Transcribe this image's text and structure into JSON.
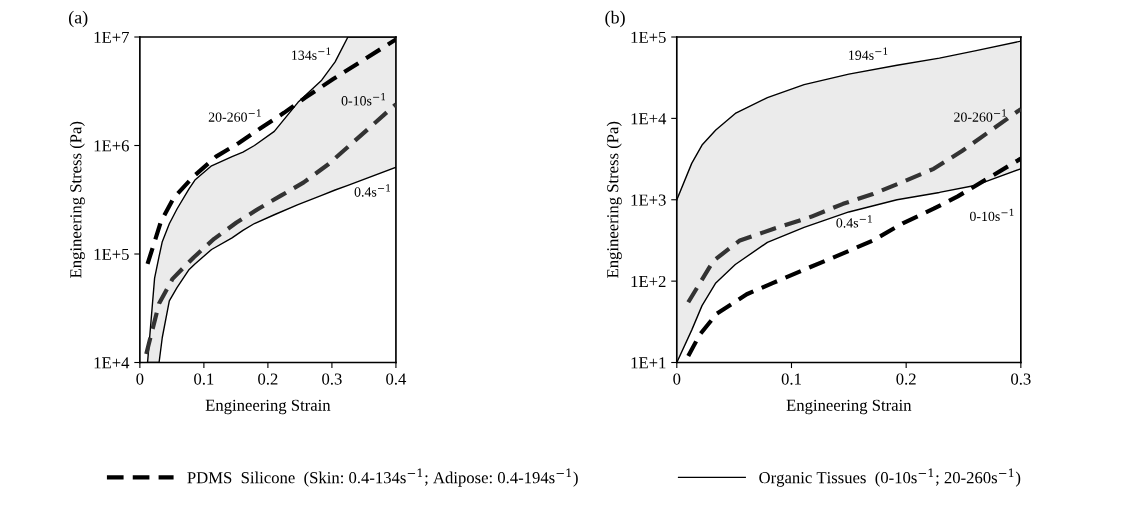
{
  "chart_data": [
    {
      "type": "line",
      "xlabel": "Engineering Strain",
      "ylabel": "Engineering Stress (Pa)",
      "log": "y",
      "grid": false,
      "legend": "bottom",
      "marker": "none",
      "xlim": [
        0,
        0.4
      ],
      "xticks": [
        0,
        0.1,
        0.2,
        0.3,
        0.4
      ],
      "ylim": [
        10000,
        10000000
      ],
      "yticks": [
        {
          "value": 10000,
          "label": "1E+4"
        },
        {
          "value": 100000,
          "label": "1E+5"
        },
        {
          "value": 1000000,
          "label": "1E+6"
        },
        {
          "value": 10000000,
          "label": "1E+7"
        }
      ],
      "series": [
        {
          "name": "PDMS  Silicone  (Skin: 0.4-134s$^{−1}$; Adipose: 0.4-194s$^{−1}$)",
          "color": "#000000",
          "line_style": "dashed",
          "x": [
            0.012,
            0.033,
            0.053,
            0.084,
            0.119,
            0.154,
            0.189,
            0.225,
            0.258,
            0.302,
            0.4
          ],
          "values": [
            81000,
            200000,
            330000,
            520000,
            790000,
            1050000,
            1450000,
            2000000,
            2750000,
            4100000,
            9500000
          ]
        },
        {
          "name": "Organic Tissues  (0-10s$^{−1}$; 20-260s$^{−1}$)",
          "color": "#000000",
          "line_style": "solid",
          "x": [
            0.012,
            0.023,
            0.03,
            0.035,
            0.046,
            0.058,
            0.077,
            0.086,
            0.112,
            0.144,
            0.161,
            0.179,
            0.21,
            0.247,
            0.284,
            0.305,
            0.325,
            0.4
          ],
          "values": [
            10000,
            60000,
            95000,
            130000,
            190000,
            260000,
            400000,
            480000,
            650000,
            790000,
            870000,
            1000000,
            1350000,
            2500000,
            4000000,
            5900000,
            10000000,
            10000000
          ],
          "lower": [
            10000,
            10000,
            10000,
            17000,
            37000,
            49000,
            72000,
            81000,
            110000,
            141000,
            165000,
            191000,
            230000,
            285000,
            347000,
            389000,
            430000,
            630000
          ],
          "upper": [
            10000,
            60000,
            95000,
            130000,
            190000,
            260000,
            400000,
            480000,
            650000,
            790000,
            870000,
            1000000,
            1350000,
            2500000,
            4000000,
            5900000,
            10000000,
            10000000
          ]
        },
        {
          "color": "#000000",
          "line_style": "solid",
          "x": [
            0.012,
            0.023,
            0.03,
            0.035,
            0.046,
            0.058,
            0.077,
            0.086,
            0.112,
            0.144,
            0.161,
            0.179,
            0.21,
            0.247,
            0.284,
            0.305,
            0.325,
            0.4
          ],
          "values": [
            10000,
            10000,
            10000,
            17000,
            37000,
            49000,
            72000,
            81000,
            110000,
            141000,
            165000,
            191000,
            230000,
            285000,
            347000,
            389000,
            430000,
            630000
          ]
        },
        {
          "color": "#333333",
          "line_style": "dashed",
          "x": [
            0.01,
            0.03,
            0.051,
            0.084,
            0.116,
            0.151,
            0.186,
            0.221,
            0.256,
            0.295,
            0.4
          ],
          "values": [
            12000,
            35000,
            59000,
            93000,
            138000,
            195000,
            263000,
            347000,
            457000,
            676000,
            2400000
          ]
        }
      ],
      "annotations": [
        "(a)",
        "134s$^{−1}$",
        "20-260$^{−1}$",
        "0-10s$^{−1}$",
        "0.4s$^{−1}$"
      ]
    },
    {
      "type": "line",
      "xlabel": "Engineering Strain",
      "ylabel": "Engineering Stress (Pa)",
      "log": "y",
      "grid": false,
      "marker": "none",
      "xlim": [
        0,
        0.3
      ],
      "xticks": [
        0,
        0.1,
        0.2,
        0.3
      ],
      "ylim": [
        10,
        100000
      ],
      "yticks": [
        {
          "value": 10,
          "label": "1E+1"
        },
        {
          "value": 100,
          "label": "1E+2"
        },
        {
          "value": 1000,
          "label": "1E+3"
        },
        {
          "value": 10000,
          "label": "1E+4"
        },
        {
          "value": 100000,
          "label": "1E+5"
        }
      ],
      "series": [
        {
          "color": "#000000",
          "line_style": "solid",
          "x": [
            0,
            0.013,
            0.022,
            0.034,
            0.051,
            0.079,
            0.111,
            0.15,
            0.192,
            0.229,
            0.261,
            0.3
          ],
          "values": [
            1000,
            2800,
            4700,
            7200,
            11500,
            18000,
            26000,
            35000,
            45000,
            55000,
            68000,
            89000
          ],
          "lower": [
            10,
            25,
            50,
            95,
            160,
            300,
            457,
            708,
            1000,
            1230,
            1510,
            2400
          ],
          "upper": [
            1000,
            2800,
            4700,
            7200,
            11500,
            18000,
            26000,
            35000,
            45000,
            55000,
            68000,
            89000
          ]
        },
        {
          "color": "#000000",
          "line_style": "solid",
          "x": [
            0,
            0.013,
            0.022,
            0.034,
            0.051,
            0.079,
            0.111,
            0.15,
            0.192,
            0.229,
            0.261,
            0.3
          ],
          "values": [
            10,
            25,
            50,
            95,
            160,
            300,
            457,
            708,
            1000,
            1230,
            1510,
            2400
          ]
        },
        {
          "color": "#333333",
          "line_style": "dashed",
          "x": [
            0.01,
            0.032,
            0.055,
            0.084,
            0.117,
            0.145,
            0.171,
            0.197,
            0.224,
            0.249,
            0.3
          ],
          "values": [
            55,
            178,
            316,
            437,
            617,
            891,
            1175,
            1660,
            2400,
            4000,
            13000
          ]
        },
        {
          "color": "#000000",
          "line_style": "dashed",
          "x": [
            0.01,
            0.02,
            0.035,
            0.061,
            0.084,
            0.116,
            0.145,
            0.171,
            0.197,
            0.224,
            0.245,
            0.3
          ],
          "values": [
            12,
            22,
            40,
            69,
            95,
            148,
            219,
            316,
            513,
            776,
            1100,
            3200
          ]
        }
      ],
      "annotations": [
        "(b)",
        "194s$^{−1}$",
        "20-260$^{−1}$",
        "0.4s$^{−1}$",
        "0-10s$^{−1}$"
      ]
    }
  ]
}
